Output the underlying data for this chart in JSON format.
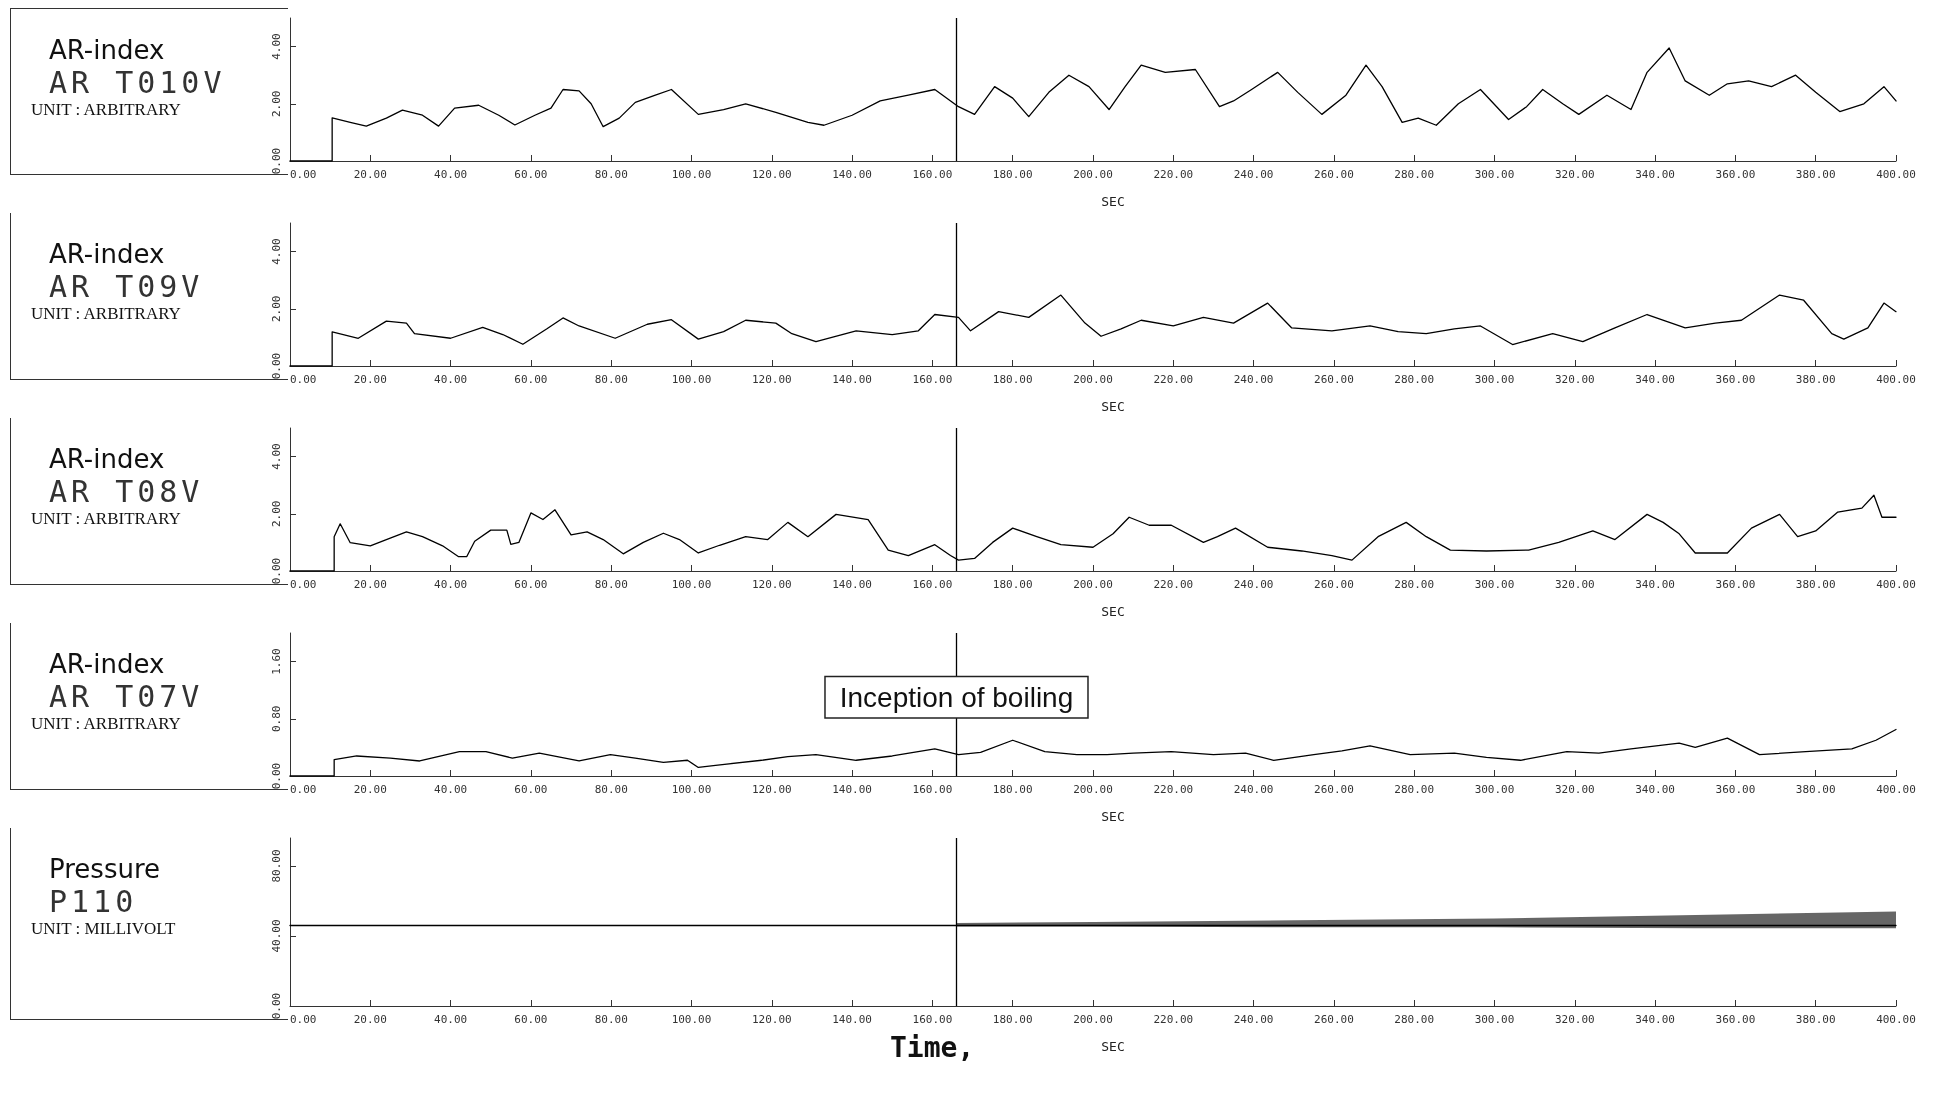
{
  "chart_data": [
    {
      "type": "line",
      "title": "AR-index",
      "subtitle": "AR T010V",
      "ylabel": "UNIT : ARBITRARY",
      "xlabel": "SEC",
      "grid": false,
      "marker": "none",
      "line_style": "solid",
      "xlim": [
        0,
        400
      ],
      "xticks": [
        {
          "value": 0,
          "label": "0.00"
        },
        {
          "value": 20,
          "label": "20.00"
        },
        {
          "value": 40,
          "label": "40.00"
        },
        {
          "value": 60,
          "label": "60.00"
        },
        {
          "value": 80,
          "label": "80.00"
        },
        {
          "value": 100,
          "label": "100.00"
        },
        {
          "value": 120,
          "label": "120.00"
        },
        {
          "value": 140,
          "label": "140.00"
        },
        {
          "value": 160,
          "label": "160.00"
        },
        {
          "value": 180,
          "label": "180.00"
        },
        {
          "value": 200,
          "label": "200.00"
        },
        {
          "value": 220,
          "label": "220.00"
        },
        {
          "value": 240,
          "label": "240.00"
        },
        {
          "value": 260,
          "label": "260.00"
        },
        {
          "value": 280,
          "label": "280.00"
        },
        {
          "value": 300,
          "label": "300.00"
        },
        {
          "value": 320,
          "label": "320.00"
        },
        {
          "value": 340,
          "label": "340.00"
        },
        {
          "value": 360,
          "label": "360.00"
        },
        {
          "value": 380,
          "label": "380.00"
        },
        {
          "value": 400,
          "label": "400.00"
        }
      ],
      "ylim": [
        0,
        5
      ],
      "yticks": [
        {
          "value": 0,
          "label": "0.00"
        },
        {
          "value": 2,
          "label": "2.00"
        },
        {
          "value": 4,
          "label": "4.00"
        }
      ],
      "ref_lines": [
        {
          "axis": "x",
          "value": 166
        }
      ],
      "series": [
        {
          "color": "#000000",
          "x": [
            0,
            10.5,
            10.5,
            15,
            19,
            24,
            28,
            33,
            37,
            41,
            47,
            52,
            56,
            61,
            65,
            68,
            72,
            75,
            78,
            82,
            86,
            91,
            95,
            101.7,
            108,
            113.5,
            121,
            129,
            133,
            140,
            147,
            154,
            160.6,
            166.5,
            170.5,
            175.5,
            180,
            184,
            189,
            194,
            199,
            204,
            208,
            212,
            218,
            225.5,
            231.5,
            235,
            239.5,
            246,
            251,
            257,
            263,
            268,
            272,
            277,
            281,
            285.5,
            291,
            296.5,
            303.5,
            308,
            312,
            317,
            321,
            328,
            334,
            338,
            343.5,
            347.5,
            353.5,
            358,
            363.3,
            369,
            375,
            380,
            386,
            392,
            397,
            400
          ],
          "values": [
            0,
            0,
            1.51,
            1.35,
            1.22,
            1.5,
            1.78,
            1.6,
            1.22,
            1.85,
            1.95,
            1.6,
            1.26,
            1.6,
            1.85,
            2.5,
            2.45,
            2.0,
            1.2,
            1.5,
            2.05,
            2.3,
            2.5,
            1.63,
            1.8,
            2.0,
            1.7,
            1.35,
            1.25,
            1.6,
            2.1,
            2.3,
            2.5,
            1.9,
            1.63,
            2.6,
            2.2,
            1.55,
            2.4,
            3.0,
            2.6,
            1.8,
            2.6,
            3.35,
            3.1,
            3.2,
            1.9,
            2.1,
            2.5,
            3.1,
            2.4,
            1.63,
            2.3,
            3.35,
            2.6,
            1.35,
            1.5,
            1.25,
            2.0,
            2.5,
            1.45,
            1.9,
            2.5,
            2.0,
            1.63,
            2.3,
            1.8,
            3.1,
            3.95,
            2.8,
            2.3,
            2.7,
            2.8,
            2.6,
            3.0,
            2.4,
            1.73,
            2.0,
            2.6,
            2.1
          ]
        }
      ]
    },
    {
      "type": "line",
      "title": "AR-index",
      "subtitle": "AR T09V",
      "ylabel": "UNIT : ARBITRARY",
      "xlabel": "SEC",
      "grid": false,
      "marker": "none",
      "line_style": "solid",
      "xlim": [
        0,
        400
      ],
      "xticks": [
        {
          "value": 0,
          "label": "0.00"
        },
        {
          "value": 20,
          "label": "20.00"
        },
        {
          "value": 40,
          "label": "40.00"
        },
        {
          "value": 60,
          "label": "60.00"
        },
        {
          "value": 80,
          "label": "80.00"
        },
        {
          "value": 100,
          "label": "100.00"
        },
        {
          "value": 120,
          "label": "120.00"
        },
        {
          "value": 140,
          "label": "140.00"
        },
        {
          "value": 160,
          "label": "160.00"
        },
        {
          "value": 180,
          "label": "180.00"
        },
        {
          "value": 200,
          "label": "200.00"
        },
        {
          "value": 220,
          "label": "220.00"
        },
        {
          "value": 240,
          "label": "240.00"
        },
        {
          "value": 260,
          "label": "260.00"
        },
        {
          "value": 280,
          "label": "280.00"
        },
        {
          "value": 300,
          "label": "300.00"
        },
        {
          "value": 320,
          "label": "320.00"
        },
        {
          "value": 340,
          "label": "340.00"
        },
        {
          "value": 360,
          "label": "360.00"
        },
        {
          "value": 380,
          "label": "380.00"
        },
        {
          "value": 400,
          "label": "400.00"
        }
      ],
      "ylim": [
        0,
        5
      ],
      "yticks": [
        {
          "value": 0,
          "label": "0.00"
        },
        {
          "value": 2,
          "label": "2.00"
        },
        {
          "value": 4,
          "label": "4.00"
        }
      ],
      "ref_lines": [
        {
          "axis": "x",
          "value": 166
        }
      ],
      "series": [
        {
          "color": "#000000",
          "x": [
            0,
            10.5,
            10.5,
            17,
            24,
            29,
            31,
            40,
            48,
            53,
            58,
            64,
            68,
            72,
            81,
            89,
            95,
            101.7,
            108,
            113.5,
            121,
            125,
            131,
            141,
            150,
            156.5,
            160.6,
            166.5,
            169.5,
            176.5,
            184,
            192,
            198,
            202,
            207,
            212,
            220,
            227.5,
            235,
            243.5,
            249.5,
            259.5,
            269,
            276,
            283,
            290,
            296.5,
            304.5,
            314.5,
            322,
            330,
            338,
            347.5,
            355,
            361.5,
            371,
            377,
            384,
            387,
            393,
            397,
            400
          ],
          "values": [
            0,
            0,
            1.19,
            0.97,
            1.57,
            1.5,
            1.13,
            0.97,
            1.35,
            1.1,
            0.76,
            1.3,
            1.68,
            1.4,
            0.97,
            1.46,
            1.62,
            0.94,
            1.2,
            1.6,
            1.5,
            1.13,
            0.85,
            1.23,
            1.1,
            1.23,
            1.8,
            1.7,
            1.23,
            1.9,
            1.7,
            2.48,
            1.5,
            1.04,
            1.3,
            1.6,
            1.4,
            1.7,
            1.5,
            2.2,
            1.33,
            1.23,
            1.4,
            1.2,
            1.13,
            1.3,
            1.4,
            0.75,
            1.13,
            0.85,
            1.33,
            1.8,
            1.33,
            1.5,
            1.6,
            2.48,
            2.3,
            1.13,
            0.94,
            1.33,
            2.2,
            1.9
          ]
        }
      ]
    },
    {
      "type": "line",
      "title": "AR-index",
      "subtitle": "AR T08V",
      "ylabel": "UNIT : ARBITRARY",
      "xlabel": "SEC",
      "grid": false,
      "marker": "none",
      "line_style": "solid",
      "xlim": [
        0,
        400
      ],
      "xticks": [
        {
          "value": 0,
          "label": "0.00"
        },
        {
          "value": 20,
          "label": "20.00"
        },
        {
          "value": 40,
          "label": "40.00"
        },
        {
          "value": 60,
          "label": "60.00"
        },
        {
          "value": 80,
          "label": "80.00"
        },
        {
          "value": 100,
          "label": "100.00"
        },
        {
          "value": 120,
          "label": "120.00"
        },
        {
          "value": 140,
          "label": "140.00"
        },
        {
          "value": 160,
          "label": "160.00"
        },
        {
          "value": 180,
          "label": "180.00"
        },
        {
          "value": 200,
          "label": "200.00"
        },
        {
          "value": 220,
          "label": "220.00"
        },
        {
          "value": 240,
          "label": "240.00"
        },
        {
          "value": 260,
          "label": "260.00"
        },
        {
          "value": 280,
          "label": "280.00"
        },
        {
          "value": 300,
          "label": "300.00"
        },
        {
          "value": 320,
          "label": "320.00"
        },
        {
          "value": 340,
          "label": "340.00"
        },
        {
          "value": 360,
          "label": "360.00"
        },
        {
          "value": 380,
          "label": "380.00"
        },
        {
          "value": 400,
          "label": "400.00"
        }
      ],
      "ylim": [
        0,
        5
      ],
      "yticks": [
        {
          "value": 0,
          "label": "0.00"
        },
        {
          "value": 2,
          "label": "2.00"
        },
        {
          "value": 4,
          "label": "4.00"
        }
      ],
      "ref_lines": [
        {
          "axis": "x",
          "value": 166
        }
      ],
      "series": [
        {
          "color": "#000000",
          "x": [
            0,
            11,
            11,
            12.5,
            15,
            20,
            24,
            29,
            33,
            38,
            42,
            44,
            46,
            50,
            54,
            55,
            57,
            60,
            63,
            66,
            70,
            74,
            78,
            83,
            88,
            93,
            97,
            101.7,
            107,
            113.5,
            119,
            124,
            129,
            136,
            144,
            149,
            154,
            160.6,
            164.5,
            166.5,
            170.5,
            175,
            180,
            186,
            192,
            200,
            205,
            209,
            214,
            219.5,
            227.5,
            231,
            235.5,
            243.5,
            252,
            259.5,
            264.5,
            271,
            278,
            283,
            289,
            298,
            308.5,
            316,
            324.5,
            330,
            338,
            342,
            346,
            350,
            358,
            364,
            371,
            375.5,
            380,
            385.5,
            391.5,
            394.5,
            396.5,
            400
          ],
          "values": [
            0,
            0,
            1.2,
            1.65,
            0.99,
            0.88,
            1.1,
            1.37,
            1.2,
            0.88,
            0.5,
            0.5,
            1.04,
            1.43,
            1.43,
            0.93,
            1.0,
            2.03,
            1.8,
            2.14,
            1.26,
            1.37,
            1.1,
            0.6,
            1.0,
            1.32,
            1.1,
            0.63,
            0.9,
            1.2,
            1.1,
            1.7,
            1.2,
            1.98,
            1.8,
            0.73,
            0.54,
            0.92,
            0.54,
            0.38,
            0.44,
            1.0,
            1.5,
            1.2,
            0.92,
            0.83,
            1.3,
            1.88,
            1.6,
            1.6,
            1.0,
            1.2,
            1.5,
            0.83,
            0.7,
            0.54,
            0.38,
            1.2,
            1.7,
            1.2,
            0.73,
            0.7,
            0.73,
            1.0,
            1.4,
            1.1,
            1.98,
            1.7,
            1.3,
            0.63,
            0.63,
            1.5,
            1.98,
            1.2,
            1.4,
            2.06,
            2.2,
            2.65,
            1.88,
            1.88
          ]
        }
      ]
    },
    {
      "type": "line",
      "title": "AR-index",
      "subtitle": "AR T07V",
      "ylabel": "UNIT : ARBITRARY",
      "xlabel": "SEC",
      "grid": false,
      "marker": "none",
      "line_style": "solid",
      "xlim": [
        0,
        400
      ],
      "xticks": [
        {
          "value": 0,
          "label": "0.00"
        },
        {
          "value": 20,
          "label": "20.00"
        },
        {
          "value": 40,
          "label": "40.00"
        },
        {
          "value": 60,
          "label": "60.00"
        },
        {
          "value": 80,
          "label": "80.00"
        },
        {
          "value": 100,
          "label": "100.00"
        },
        {
          "value": 120,
          "label": "120.00"
        },
        {
          "value": 140,
          "label": "140.00"
        },
        {
          "value": 160,
          "label": "160.00"
        },
        {
          "value": 180,
          "label": "180.00"
        },
        {
          "value": 200,
          "label": "200.00"
        },
        {
          "value": 220,
          "label": "220.00"
        },
        {
          "value": 240,
          "label": "240.00"
        },
        {
          "value": 260,
          "label": "260.00"
        },
        {
          "value": 280,
          "label": "280.00"
        },
        {
          "value": 300,
          "label": "300.00"
        },
        {
          "value": 320,
          "label": "320.00"
        },
        {
          "value": 340,
          "label": "340.00"
        },
        {
          "value": 360,
          "label": "360.00"
        },
        {
          "value": 380,
          "label": "380.00"
        },
        {
          "value": 400,
          "label": "400.00"
        }
      ],
      "ylim": [
        0,
        2
      ],
      "yticks": [
        {
          "value": 0,
          "label": "0.00"
        },
        {
          "value": 0.8,
          "label": "0.80"
        },
        {
          "value": 1.6,
          "label": "1.60"
        }
      ],
      "ref_lines": [
        {
          "axis": "x",
          "value": 166,
          "label": "Inception of boiling"
        }
      ],
      "series": [
        {
          "color": "#000000",
          "x": [
            0,
            11,
            11,
            16.6,
            25,
            32.3,
            42.2,
            48.8,
            55.4,
            62.1,
            72,
            79.8,
            86,
            93,
            99,
            101.7,
            106,
            117.5,
            124,
            131,
            141,
            150,
            160.6,
            166.5,
            172,
            180,
            188,
            196,
            203.5,
            210,
            219.5,
            230,
            238,
            245,
            255,
            262,
            269,
            279,
            290,
            298,
            306.5,
            318,
            326,
            334,
            346,
            350,
            358,
            366,
            377.5,
            389,
            395,
            400
          ],
          "values": [
            0,
            0,
            0.23,
            0.28,
            0.25,
            0.21,
            0.34,
            0.34,
            0.25,
            0.32,
            0.21,
            0.3,
            0.25,
            0.19,
            0.22,
            0.12,
            0.15,
            0.22,
            0.27,
            0.3,
            0.22,
            0.28,
            0.38,
            0.3,
            0.33,
            0.5,
            0.34,
            0.3,
            0.3,
            0.32,
            0.34,
            0.3,
            0.32,
            0.22,
            0.3,
            0.35,
            0.42,
            0.3,
            0.32,
            0.26,
            0.22,
            0.34,
            0.32,
            0.38,
            0.46,
            0.4,
            0.53,
            0.3,
            0.34,
            0.38,
            0.5,
            0.65
          ]
        }
      ]
    },
    {
      "type": "line",
      "title": "Pressure",
      "subtitle": "P110",
      "ylabel": "UNIT : MILLIVOLT",
      "xlabel": "SEC",
      "annotations": [
        "Time,"
      ],
      "grid": false,
      "marker": "none",
      "line_style": "solid",
      "xlim": [
        0,
        400
      ],
      "xticks": [
        {
          "value": 0,
          "label": "0.00"
        },
        {
          "value": 20,
          "label": "20.00"
        },
        {
          "value": 40,
          "label": "40.00"
        },
        {
          "value": 60,
          "label": "60.00"
        },
        {
          "value": 80,
          "label": "80.00"
        },
        {
          "value": 100,
          "label": "100.00"
        },
        {
          "value": 120,
          "label": "120.00"
        },
        {
          "value": 140,
          "label": "140.00"
        },
        {
          "value": 160,
          "label": "160.00"
        },
        {
          "value": 180,
          "label": "180.00"
        },
        {
          "value": 200,
          "label": "200.00"
        },
        {
          "value": 220,
          "label": "220.00"
        },
        {
          "value": 240,
          "label": "240.00"
        },
        {
          "value": 260,
          "label": "260.00"
        },
        {
          "value": 280,
          "label": "280.00"
        },
        {
          "value": 300,
          "label": "300.00"
        },
        {
          "value": 320,
          "label": "320.00"
        },
        {
          "value": 340,
          "label": "340.00"
        },
        {
          "value": 360,
          "label": "360.00"
        },
        {
          "value": 380,
          "label": "380.00"
        },
        {
          "value": 400,
          "label": "400.00"
        }
      ],
      "ylim": [
        0,
        96
      ],
      "yticks": [
        {
          "value": 0,
          "label": "0.00"
        },
        {
          "value": 40,
          "label": "40.00"
        },
        {
          "value": 80,
          "label": "80.00"
        }
      ],
      "ref_lines": [
        {
          "axis": "x",
          "value": 166
        }
      ],
      "series": [
        {
          "color": "#000000",
          "x": [
            0,
            166,
            200,
            250,
            300,
            350,
            400
          ],
          "values": [
            46,
            46,
            46,
            46,
            46,
            46,
            46
          ],
          "lower": [
            null,
            45.5,
            45.5,
            45,
            45,
            44.5,
            44.5
          ],
          "upper": [
            null,
            47.5,
            48,
            49,
            50,
            52,
            54
          ]
        }
      ]
    }
  ]
}
